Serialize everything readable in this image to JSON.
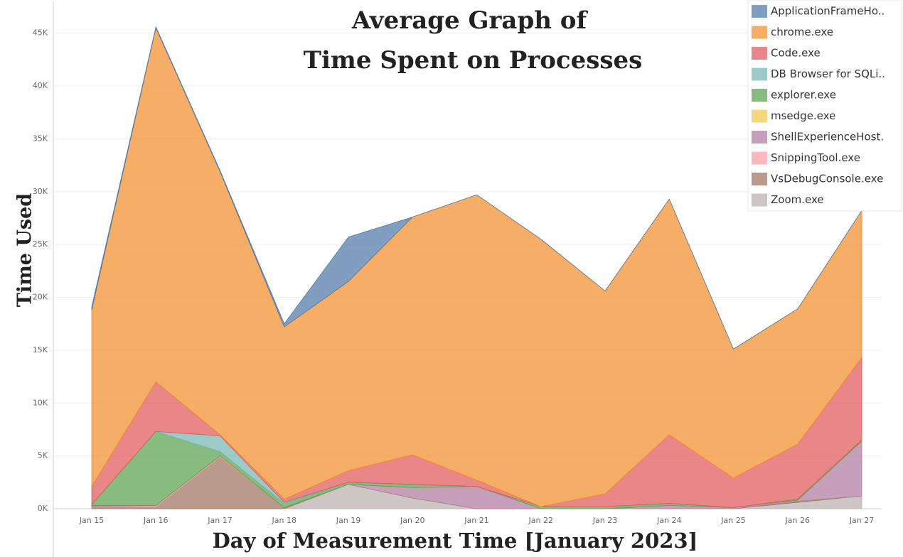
{
  "chart_data": {
    "type": "stacked-area",
    "title": [
      "Average Graph of",
      "Time Spent on Processes"
    ],
    "x_label": "Day of Measurement Time [January 2023]",
    "y_label": "Time Used",
    "categories": [
      "Jan 15",
      "Jan 16",
      "Jan 17",
      "Jan 18",
      "Jan 19",
      "Jan 20",
      "Jan 21",
      "Jan 22",
      "Jan 23",
      "Jan 24",
      "Jan 25",
      "Jan 26",
      "Jan 27"
    ],
    "ylim": [
      0,
      48000
    ],
    "yticks": [
      {
        "value": 0,
        "label": "0K"
      },
      {
        "value": 5000,
        "label": "5K"
      },
      {
        "value": 10000,
        "label": "10K"
      },
      {
        "value": 15000,
        "label": "15K"
      },
      {
        "value": 20000,
        "label": "20K"
      },
      {
        "value": 25000,
        "label": "25K"
      },
      {
        "value": 30000,
        "label": "30K"
      },
      {
        "value": 35000,
        "label": "35K"
      },
      {
        "value": 40000,
        "label": "40K"
      },
      {
        "value": 45000,
        "label": "45K"
      }
    ],
    "grid": true,
    "legend": "top-right",
    "stack_order": "reverse",
    "series": [
      {
        "name": "ApplicationFrameHo..",
        "color": "#4e79a7",
        "values": [
          300,
          100,
          100,
          300,
          4200,
          0,
          0,
          0,
          0,
          0,
          0,
          0,
          0
        ]
      },
      {
        "name": "chrome.exe",
        "color": "#f28e2b",
        "values": [
          16700,
          33500,
          24900,
          16300,
          17900,
          22500,
          27000,
          25300,
          19200,
          22300,
          12200,
          12800,
          13900
        ]
      },
      {
        "name": "Code.exe",
        "color": "#e15759",
        "values": [
          1700,
          4700,
          100,
          300,
          1100,
          2800,
          600,
          0,
          1200,
          6500,
          2800,
          5200,
          7800
        ]
      },
      {
        "name": "DB Browser for SQLi..",
        "color": "#76b7b2",
        "values": [
          0,
          0,
          1500,
          100,
          0,
          0,
          0,
          0,
          0,
          0,
          0,
          0,
          0
        ]
      },
      {
        "name": "explorer.exe",
        "color": "#59a14f",
        "values": [
          100,
          7000,
          400,
          400,
          200,
          300,
          0,
          200,
          200,
          200,
          0,
          100,
          100
        ]
      },
      {
        "name": "msedge.exe",
        "color": "#edc948",
        "values": [
          0,
          0,
          0,
          0,
          0,
          0,
          0,
          0,
          0,
          0,
          0,
          0,
          0
        ]
      },
      {
        "name": "ShellExperienceHost.",
        "color": "#b07aa1",
        "values": [
          0,
          0,
          0,
          0,
          0,
          1000,
          2100,
          0,
          0,
          300,
          100,
          100,
          5200
        ]
      },
      {
        "name": "SnippingTool.exe",
        "color": "#ff9da7",
        "values": [
          0,
          100,
          100,
          0,
          0,
          0,
          0,
          0,
          0,
          0,
          0,
          0,
          0
        ]
      },
      {
        "name": "VsDebugConsole.exe",
        "color": "#9c755f",
        "values": [
          300,
          200,
          4900,
          100,
          0,
          0,
          0,
          0,
          0,
          0,
          0,
          100,
          0
        ]
      },
      {
        "name": "Zoom.exe",
        "color": "#bab0ac",
        "values": [
          0,
          0,
          0,
          0,
          2300,
          1000,
          0,
          0,
          0,
          0,
          0,
          600,
          1200
        ]
      }
    ]
  }
}
